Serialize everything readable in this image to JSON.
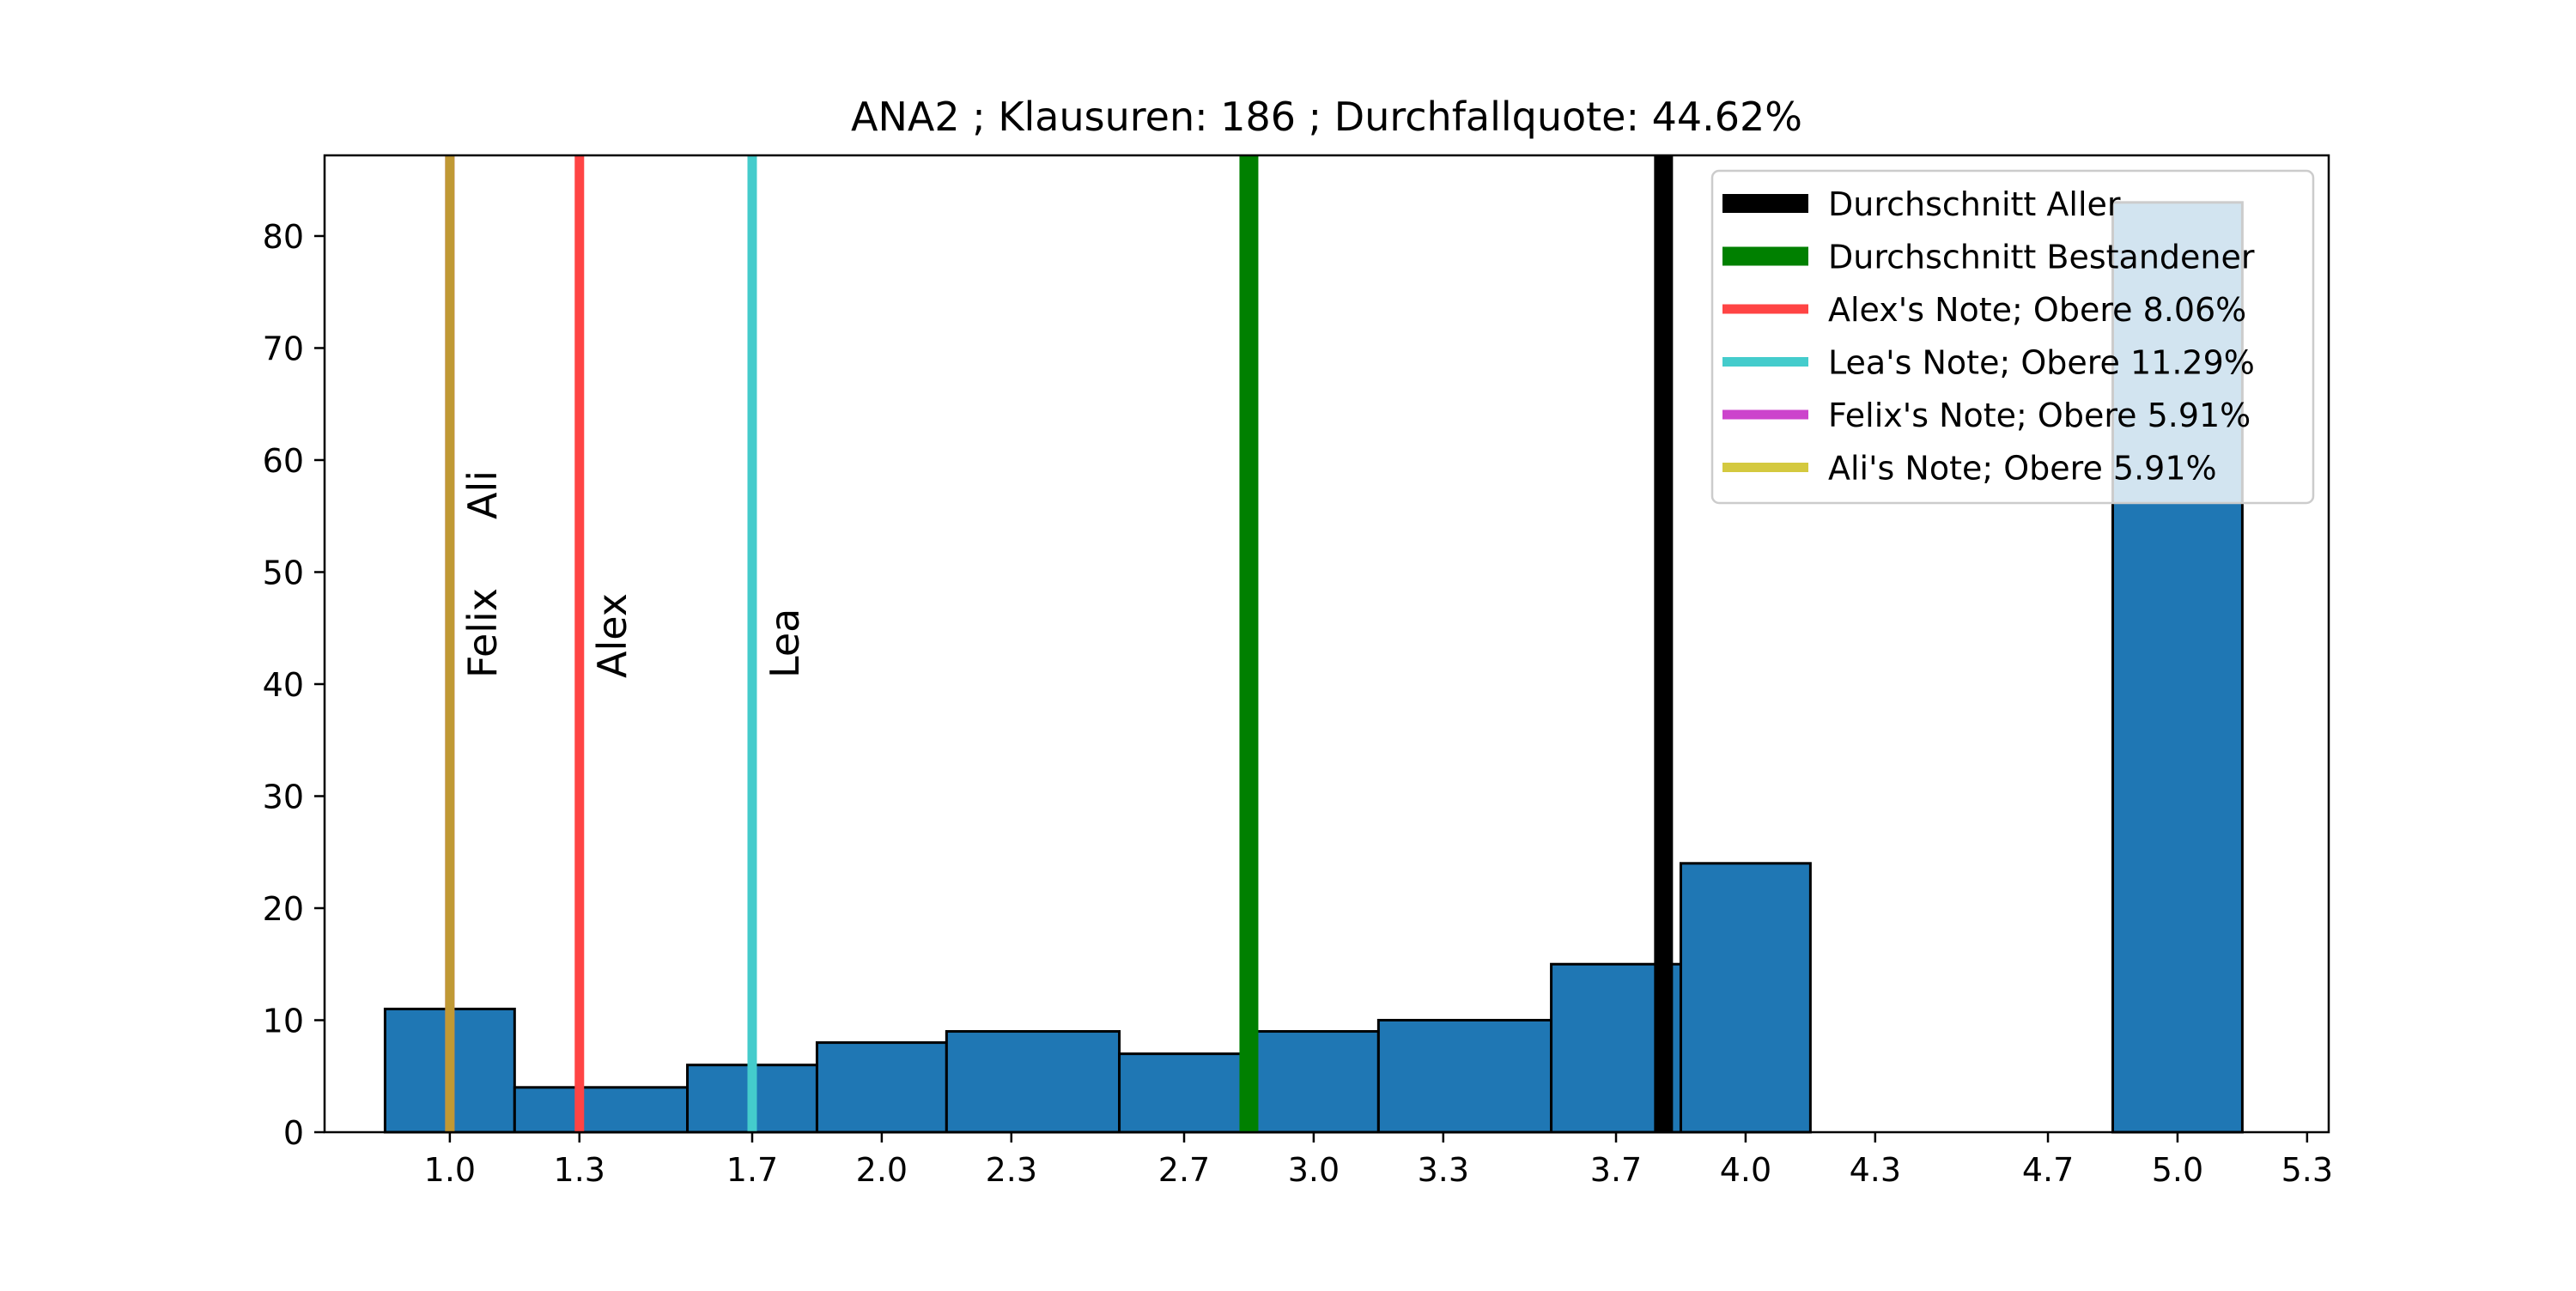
{
  "chart_data": {
    "type": "bar",
    "title": "ANA2 ; Klausuren: 186 ; Durchfallquote: 44.62%",
    "xlabel": "",
    "ylabel": "",
    "xlim": [
      0.71,
      5.35
    ],
    "ylim": [
      0,
      87.2
    ],
    "x_ticks": [
      1.0,
      1.3,
      1.7,
      2.0,
      2.3,
      2.7,
      3.0,
      3.3,
      3.7,
      4.0,
      4.3,
      4.7,
      5.0,
      5.3
    ],
    "x_tick_labels": [
      "1.0",
      "1.3",
      "1.7",
      "2.0",
      "2.3",
      "2.7",
      "3.0",
      "3.3",
      "3.7",
      "4.0",
      "4.3",
      "4.7",
      "5.0",
      "5.3"
    ],
    "y_ticks": [
      0,
      10,
      20,
      30,
      40,
      50,
      60,
      70,
      80
    ],
    "y_tick_labels": [
      "0",
      "10",
      "20",
      "30",
      "40",
      "50",
      "60",
      "70",
      "80"
    ],
    "bar_color": "#1f77b4",
    "bins": [
      {
        "x0": 0.85,
        "x1": 1.15,
        "value": 11
      },
      {
        "x0": 1.15,
        "x1": 1.55,
        "value": 4
      },
      {
        "x0": 1.55,
        "x1": 1.85,
        "value": 6
      },
      {
        "x0": 1.85,
        "x1": 2.15,
        "value": 8
      },
      {
        "x0": 2.15,
        "x1": 2.55,
        "value": 9
      },
      {
        "x0": 2.55,
        "x1": 2.85,
        "value": 7
      },
      {
        "x0": 2.85,
        "x1": 3.15,
        "value": 9
      },
      {
        "x0": 3.15,
        "x1": 3.55,
        "value": 10
      },
      {
        "x0": 3.55,
        "x1": 3.85,
        "value": 15
      },
      {
        "x0": 3.85,
        "x1": 4.15,
        "value": 24
      },
      {
        "x0": 4.15,
        "x1": 4.55,
        "value": 0
      },
      {
        "x0": 4.55,
        "x1": 4.85,
        "value": 0
      },
      {
        "x0": 4.85,
        "x1": 5.15,
        "value": 83
      }
    ],
    "reference_lines": [
      {
        "label": "Durchschnitt Aller",
        "x": 3.81,
        "color": "#000000",
        "width": "thick"
      },
      {
        "label": "Durchschnitt Bestandener",
        "x": 2.85,
        "color": "#008000",
        "width": "thick"
      },
      {
        "label": "Alex's Note; Obere 8.06%",
        "x": 1.3,
        "color": "#ff4444",
        "width": "normal",
        "annotation": "Alex"
      },
      {
        "label": "Lea's Note; Obere 11.29%",
        "x": 1.7,
        "color": "#44cccc",
        "width": "normal",
        "annotation": "Lea"
      },
      {
        "label": "Felix's Note; Obere 5.91%",
        "x": 1.0,
        "color": "#cc44cc",
        "width": "normal",
        "annotation": "Felix"
      },
      {
        "label": "Ali's Note; Obere 5.91%",
        "x": 1.0,
        "color": "#c09934",
        "legend_color": "#d4c93f",
        "width": "normal",
        "annotation": "Ali"
      }
    ],
    "legend": {
      "placement": "top-right",
      "entries": [
        {
          "label": "Durchschnitt Aller",
          "color": "#000000",
          "style": "thick"
        },
        {
          "label": "Durchschnitt Bestandener",
          "color": "#008000",
          "style": "thick"
        },
        {
          "label": "Alex's Note; Obere 8.06%",
          "color": "#ff4444",
          "style": "normal"
        },
        {
          "label": "Lea's Note; Obere 11.29%",
          "color": "#44cccc",
          "style": "normal"
        },
        {
          "label": "Felix's Note; Obere 5.91%",
          "color": "#cc44cc",
          "style": "normal"
        },
        {
          "label": "Ali's Note; Obere 5.91%",
          "color": "#d4c93f",
          "style": "normal"
        }
      ]
    }
  }
}
